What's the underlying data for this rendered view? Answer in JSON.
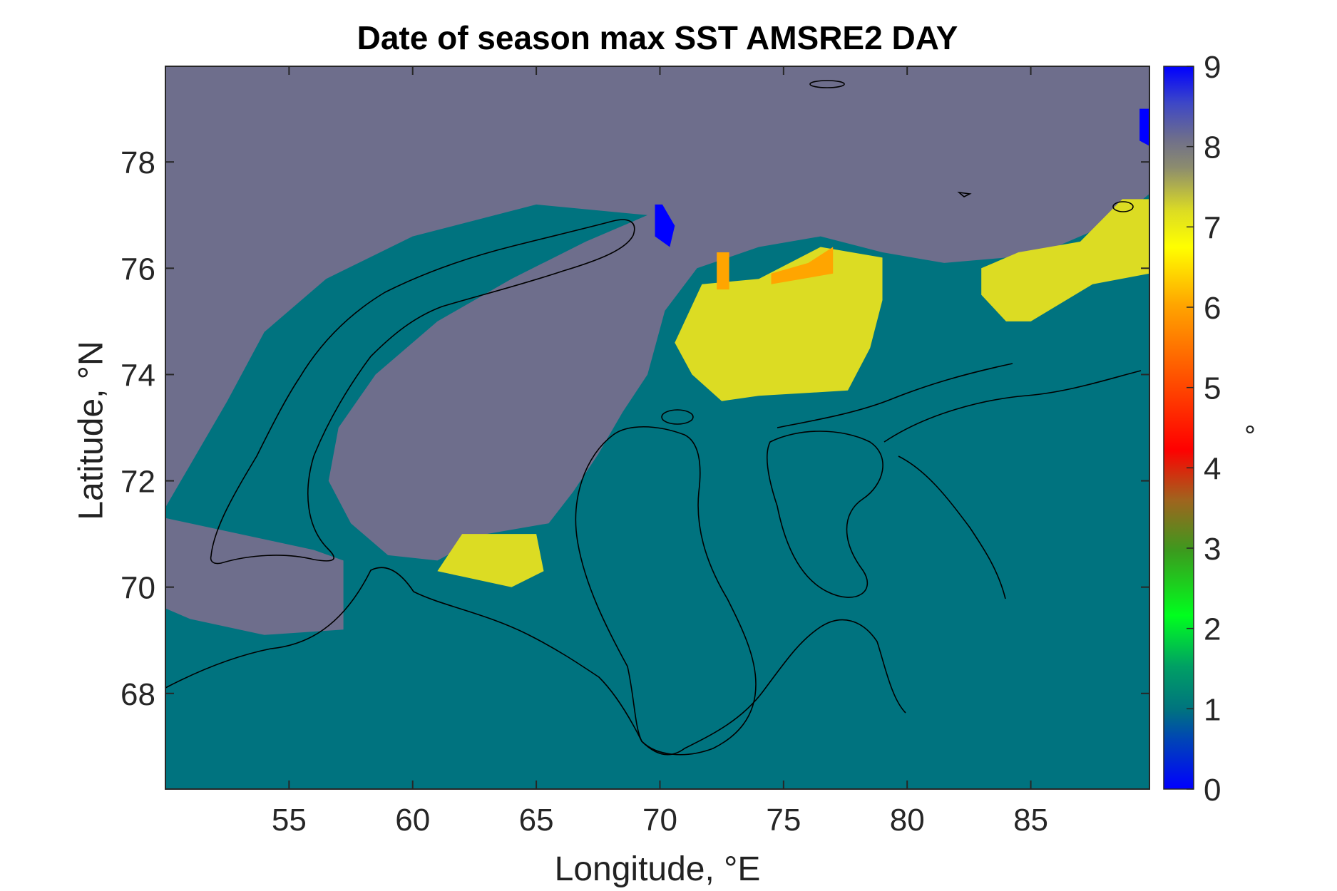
{
  "chart_data": {
    "type": "heatmap",
    "title": "Date of season max SST AMSRE2 DAY",
    "xlabel": "Longitude, °E",
    "ylabel": "Latitude, °N",
    "xlim": [
      50.0,
      89.8
    ],
    "ylim": [
      66.2,
      79.8
    ],
    "xticks": [
      55,
      60,
      65,
      70,
      75,
      80,
      85
    ],
    "yticks": [
      68,
      70,
      72,
      74,
      76,
      78
    ],
    "colorbar": {
      "label": "°",
      "range": [
        0,
        9
      ],
      "ticks": [
        0,
        1,
        2,
        3,
        4,
        5,
        6,
        7,
        8,
        9
      ],
      "colormap": "jet-like"
    },
    "colors": {
      "background_value_1": "#00737f",
      "value_8": "#6e6e8c",
      "value_7": "#dcdc23",
      "value_6": "#ffa500",
      "value_0": "#0000ff",
      "value_3": "#3c9a1e",
      "coastline": "#000000"
    },
    "regions": [
      {
        "value": 8,
        "description_lon_lat": [
          [
            50.0,
            79.8
          ],
          [
            89.8,
            79.8
          ],
          [
            89.8,
            77.4
          ],
          [
            88.5,
            76.9
          ],
          [
            86.0,
            76.4
          ],
          [
            84.0,
            76.2
          ],
          [
            81.5,
            76.1
          ],
          [
            79.0,
            76.3
          ],
          [
            76.5,
            76.6
          ],
          [
            74.0,
            76.4
          ],
          [
            71.5,
            76.0
          ],
          [
            70.2,
            75.2
          ],
          [
            69.5,
            74.0
          ],
          [
            68.5,
            73.3
          ],
          [
            67.5,
            72.5
          ],
          [
            66.5,
            71.8
          ],
          [
            65.5,
            71.2
          ],
          [
            63.0,
            71.0
          ],
          [
            61.0,
            70.5
          ],
          [
            59.0,
            70.6
          ],
          [
            57.5,
            71.2
          ],
          [
            56.6,
            72.0
          ],
          [
            57.0,
            73.0
          ],
          [
            58.5,
            74.0
          ],
          [
            61.0,
            75.0
          ],
          [
            64.0,
            75.8
          ],
          [
            67.0,
            76.5
          ],
          [
            69.5,
            77.0
          ],
          [
            65.0,
            77.2
          ],
          [
            60.0,
            76.6
          ],
          [
            56.5,
            75.8
          ],
          [
            54.0,
            74.8
          ],
          [
            52.5,
            73.5
          ],
          [
            51.0,
            72.3
          ],
          [
            50.0,
            71.5
          ]
        ]
      },
      {
        "value": 8,
        "description_lon_lat": [
          [
            50.0,
            71.3
          ],
          [
            53.0,
            71.0
          ],
          [
            56.0,
            70.7
          ],
          [
            57.2,
            70.5
          ],
          [
            57.2,
            69.2
          ],
          [
            54.0,
            69.1
          ],
          [
            51.0,
            69.4
          ],
          [
            50.0,
            69.6
          ]
        ]
      },
      {
        "value": 7,
        "description_lon_lat": [
          [
            71.7,
            75.7
          ],
          [
            74.0,
            75.8
          ],
          [
            76.5,
            76.4
          ],
          [
            79.0,
            76.2
          ],
          [
            79.0,
            75.4
          ],
          [
            78.5,
            74.5
          ],
          [
            77.6,
            73.7
          ],
          [
            74.0,
            73.6
          ],
          [
            72.5,
            73.5
          ],
          [
            71.3,
            74.0
          ],
          [
            70.6,
            74.6
          ]
        ]
      },
      {
        "value": 7,
        "description_lon_lat": [
          [
            83.0,
            76.0
          ],
          [
            84.5,
            76.3
          ],
          [
            87.0,
            76.5
          ],
          [
            88.7,
            77.3
          ],
          [
            89.8,
            77.3
          ],
          [
            89.8,
            75.9
          ],
          [
            87.5,
            75.7
          ],
          [
            85.0,
            75.0
          ],
          [
            84.0,
            75.0
          ],
          [
            83.0,
            75.5
          ]
        ]
      },
      {
        "value": 7,
        "description_lon_lat": [
          [
            62.0,
            71.0
          ],
          [
            65.0,
            71.0
          ],
          [
            65.3,
            70.3
          ],
          [
            64.0,
            70.0
          ],
          [
            62.0,
            70.2
          ],
          [
            61.0,
            70.3
          ]
        ]
      },
      {
        "value": 6,
        "description_lon_lat": [
          [
            74.5,
            75.9
          ],
          [
            76.0,
            76.1
          ],
          [
            77.0,
            76.4
          ],
          [
            77.0,
            75.9
          ],
          [
            74.5,
            75.7
          ]
        ]
      },
      {
        "value": 6,
        "description_lon_lat": [
          [
            72.3,
            76.3
          ],
          [
            72.8,
            76.3
          ],
          [
            72.8,
            75.6
          ],
          [
            72.3,
            75.6
          ]
        ]
      },
      {
        "value": 0,
        "description_lon_lat": [
          [
            69.8,
            77.2
          ],
          [
            70.1,
            77.2
          ],
          [
            70.6,
            76.8
          ],
          [
            70.4,
            76.4
          ],
          [
            69.8,
            76.6
          ]
        ]
      },
      {
        "value": 0,
        "description_lon_lat": [
          [
            89.4,
            79.0
          ],
          [
            89.8,
            79.0
          ],
          [
            89.8,
            78.3
          ],
          [
            89.4,
            78.4
          ]
        ]
      }
    ]
  }
}
